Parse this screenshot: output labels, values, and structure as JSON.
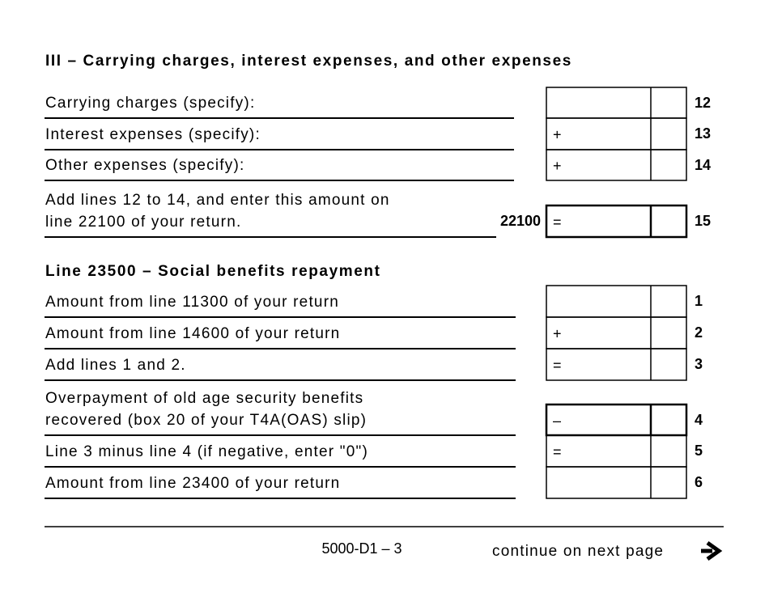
{
  "section3": {
    "title": "III – Carrying charges, interest expenses, and other expenses",
    "rows": [
      {
        "label": [
          "Carrying charges (specify):"
        ],
        "line": "12"
      },
      {
        "label": [
          "Interest expenses (specify):"
        ],
        "sign": "+",
        "line": "13"
      },
      {
        "label": [
          "Other expenses (specify):"
        ],
        "sign": "+",
        "line": "14"
      },
      {
        "label": [
          "Add lines 12 to 14, and enter this amount on",
          "line 22100 of your return."
        ],
        "code": "22100",
        "sign": "=",
        "line": "15"
      }
    ]
  },
  "section_23500": {
    "title": "Line 23500 – Social benefits repayment",
    "rows": [
      {
        "label": [
          "Amount from line 11300 of your return"
        ],
        "line": "1"
      },
      {
        "label": [
          "Amount from line 14600 of your return"
        ],
        "sign": "+",
        "line": "2"
      },
      {
        "label": [
          "Add lines 1 and 2."
        ],
        "sign": "=",
        "line": "3"
      },
      {
        "label": [
          "Overpayment of old age security benefits",
          "recovered (box 20 of your T4A(OAS) slip)"
        ],
        "sign": "–",
        "line": "4"
      },
      {
        "label": [
          "Line 3 minus line 4 (if negative, enter \"0\")"
        ],
        "sign": "=",
        "line": "5"
      },
      {
        "label": [
          "Amount from line 23400 of your return"
        ],
        "line": "6"
      }
    ]
  },
  "footer": {
    "form_code": "5000-D1 – 3",
    "continue": "continue on next page"
  }
}
